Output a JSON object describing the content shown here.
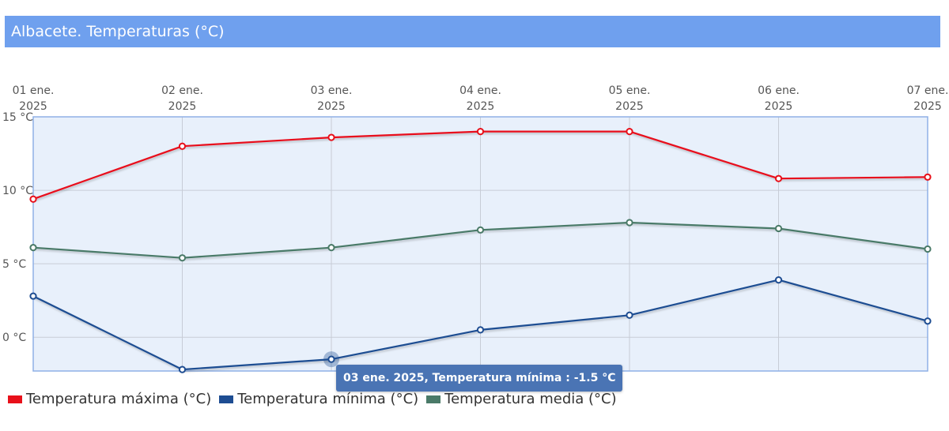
{
  "title": "Albacete. Temperaturas (°C)",
  "colors": {
    "header_bg": "#6fa0ee",
    "plot_bg": "#e8f0fb",
    "plot_border": "#8fb0e6",
    "tooltip_bg": "#4a74b4"
  },
  "chart_data": {
    "type": "line",
    "x": [
      [
        "01 ene.",
        "2025"
      ],
      [
        "02 ene.",
        "2025"
      ],
      [
        "03 ene.",
        "2025"
      ],
      [
        "04 ene.",
        "2025"
      ],
      [
        "05 ene.",
        "2025"
      ],
      [
        "06 ene.",
        "2025"
      ],
      [
        "07 ene.",
        "2025"
      ]
    ],
    "ylim": [
      -2.3,
      15
    ],
    "yticks": [
      {
        "value": 15,
        "label": "15 °C"
      },
      {
        "value": 10,
        "label": "10 °C"
      },
      {
        "value": 5,
        "label": "5 °C"
      },
      {
        "value": 0,
        "label": "0 °C"
      }
    ],
    "grid": true,
    "x_axis_position": "top",
    "legend_position": "bottom-left",
    "series": [
      {
        "name": "Temperatura máxima (°C)",
        "color": "#e8101a",
        "values": [
          9.4,
          13.0,
          13.6,
          14.0,
          14.0,
          10.8,
          10.9
        ]
      },
      {
        "name": "Temperatura mínima (°C)",
        "color": "#1e4d92",
        "values": [
          2.8,
          -2.2,
          -1.5,
          0.5,
          1.5,
          3.9,
          1.1
        ]
      },
      {
        "name": "Temperatura media (°C)",
        "color": "#4a7a68",
        "values": [
          6.1,
          5.4,
          6.1,
          7.3,
          7.8,
          7.4,
          6.0
        ]
      }
    ],
    "tooltip": {
      "text": "03 ene. 2025, Temperatura mínima : -1.5 °C",
      "series": 1,
      "index": 2
    }
  }
}
